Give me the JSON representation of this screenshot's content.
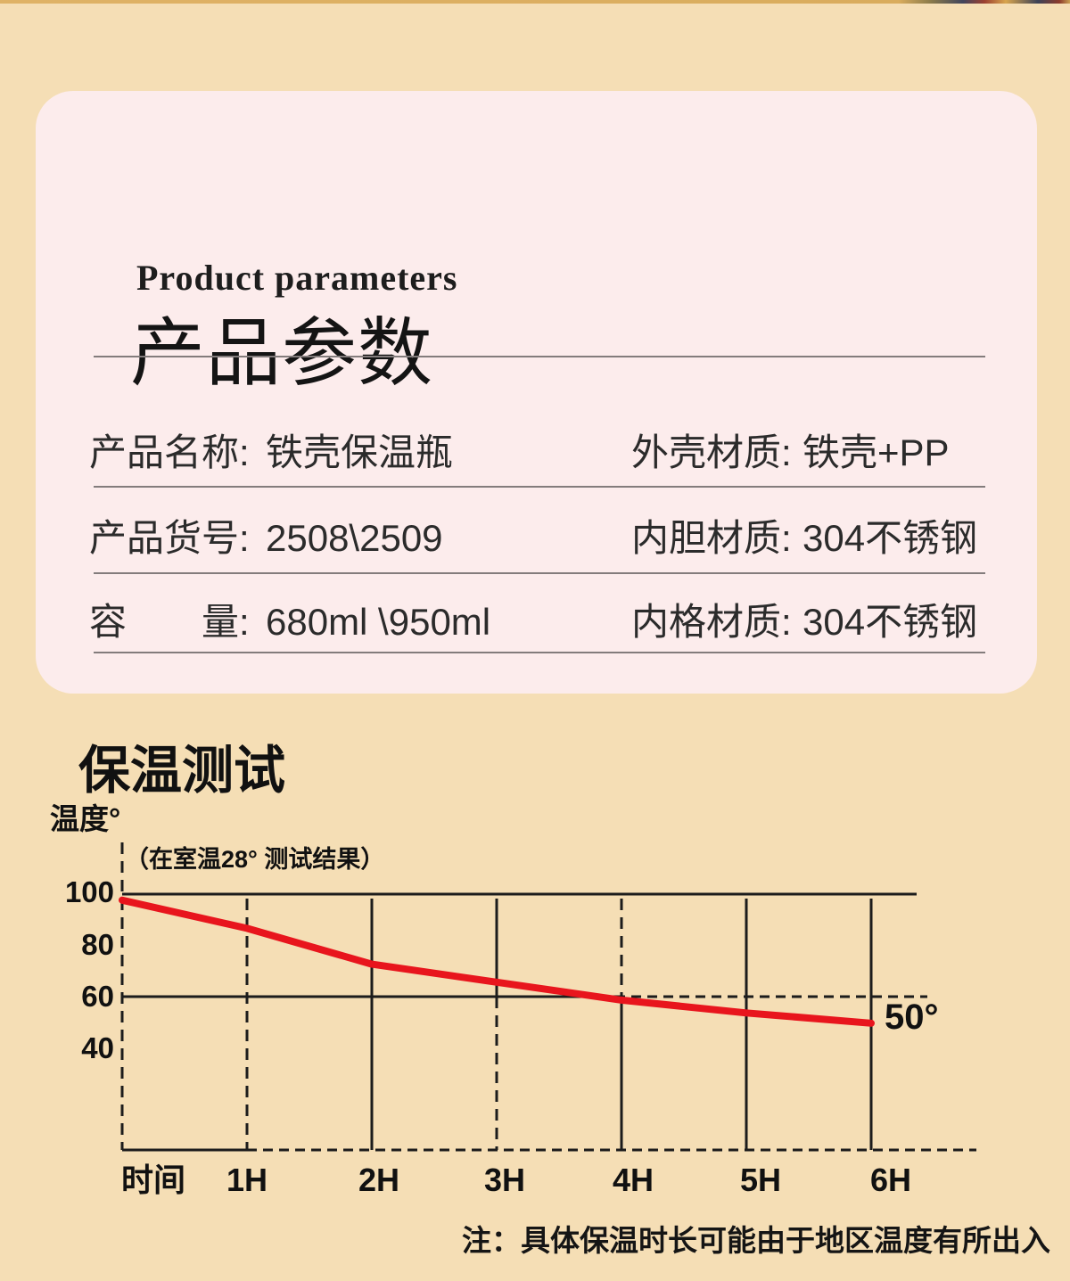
{
  "card": {
    "subtitle_en": "Product parameters",
    "title": "产品参数",
    "bg_color": "#fcecec",
    "rows": [
      {
        "left_label": "产品名称:",
        "left_value": "铁壳保温瓶",
        "right_label": "外壳材质:",
        "right_value": "铁壳+PP"
      },
      {
        "left_label": "产品货号:",
        "left_value": "2508\\2509",
        "right_label": "内胆材质:",
        "right_value": "304不锈钢"
      },
      {
        "left_label": "容　　量:",
        "left_value": "680ml \\950ml",
        "right_label": "内格材质:",
        "right_value": "304不锈钢"
      }
    ]
  },
  "chart_data": {
    "type": "line",
    "title": "保温测试",
    "ylabel": "温度°",
    "condition_note": "（在室温28° 测试结果）",
    "x_axis_labels": [
      "时间",
      "1H",
      "2H",
      "3H",
      "4H",
      "5H",
      "6H"
    ],
    "hours": [
      0,
      1,
      2,
      3,
      4,
      5,
      6
    ],
    "values": [
      98,
      87,
      73,
      66,
      59,
      54,
      50
    ],
    "y_ticks": [
      100,
      80,
      60,
      40
    ],
    "ylim": [
      0,
      100
    ],
    "grid": "mixed solid/dashed",
    "legend_position": "none",
    "end_label": "50°",
    "line_color": "#e8151d",
    "footnote": "注：具体保温时长可能由于地区温度有所出入"
  },
  "colors": {
    "page_background": "#f5deb5",
    "card_background": "#fcecec",
    "temperature_line": "#e8151d",
    "text": "#1a1a1a"
  }
}
